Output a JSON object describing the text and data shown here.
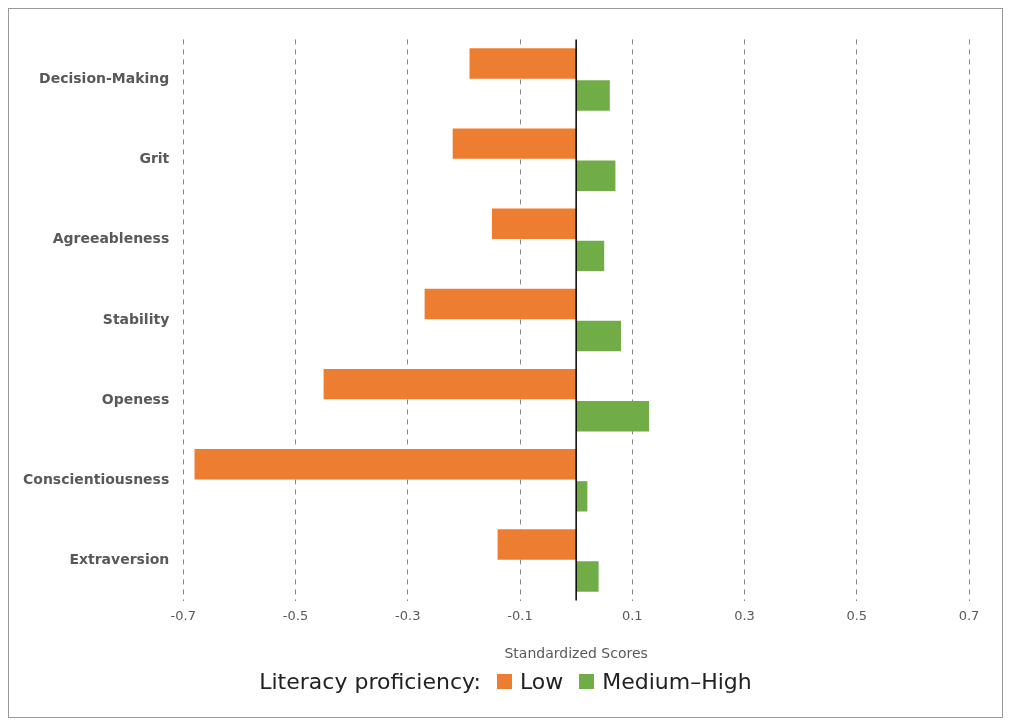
{
  "chart_data": {
    "type": "bar",
    "orientation": "horizontal",
    "xlabel": "Standardized Scores",
    "legend_title": "Literacy proficiency:",
    "categories": [
      "Decision-Making",
      "Grit",
      "Agreeableness",
      "Stability",
      "Openess",
      "Conscientiousness",
      "Extraversion"
    ],
    "series": [
      {
        "name": "Low",
        "color": "#ed7d31",
        "values": [
          -0.19,
          -0.22,
          -0.15,
          -0.27,
          -0.45,
          -0.68,
          -0.14
        ]
      },
      {
        "name": "Medium–High",
        "color": "#70ad47",
        "values": [
          0.06,
          0.07,
          0.05,
          0.08,
          0.13,
          0.02,
          0.04
        ]
      }
    ],
    "xlim": [
      -0.7,
      0.7
    ],
    "xticks": [
      -0.7,
      -0.5,
      -0.3,
      -0.1,
      0.1,
      0.3,
      0.5,
      0.7
    ],
    "grid": "x",
    "legend": "bottom"
  }
}
